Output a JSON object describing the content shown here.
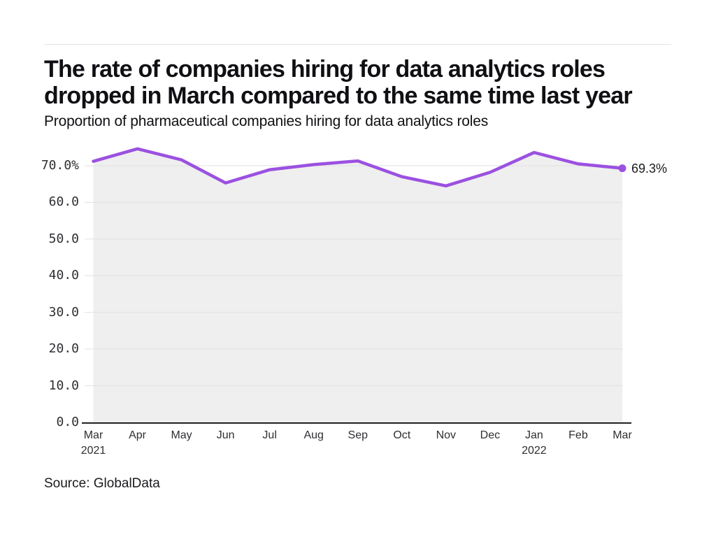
{
  "header": {
    "title": "The rate of companies hiring for data analytics roles\ndropped in March compared to the same time last year",
    "subtitle": "Proportion of pharmaceutical companies hiring for data analytics roles"
  },
  "chart_data": {
    "type": "line",
    "title": "The rate of companies hiring for data analytics roles dropped in March compared to the same time last year",
    "subtitle": "Proportion of pharmaceutical companies hiring for data analytics roles",
    "categories": [
      "Mar 2021",
      "Apr",
      "May",
      "Jun",
      "Jul",
      "Aug",
      "Sep",
      "Oct",
      "Nov",
      "Dec",
      "Jan 2022",
      "Feb",
      "Mar"
    ],
    "x_tick_labels": [
      {
        "month": "Mar",
        "year": "2021"
      },
      {
        "month": "Apr"
      },
      {
        "month": "May"
      },
      {
        "month": "Jun"
      },
      {
        "month": "Jul"
      },
      {
        "month": "Aug"
      },
      {
        "month": "Sep"
      },
      {
        "month": "Oct"
      },
      {
        "month": "Nov"
      },
      {
        "month": "Dec"
      },
      {
        "month": "Jan",
        "year": "2022"
      },
      {
        "month": "Feb"
      },
      {
        "month": "Mar"
      }
    ],
    "series": [
      {
        "name": "Proportion of pharmaceutical companies hiring for data analytics roles",
        "values": [
          71.2,
          74.6,
          71.6,
          65.3,
          68.9,
          70.3,
          71.3,
          67.0,
          64.5,
          68.2,
          73.6,
          70.5,
          69.3
        ]
      }
    ],
    "end_label": "69.3%",
    "yticks": [
      {
        "value": 70,
        "label": "70.0%"
      },
      {
        "value": 60,
        "label": "60.0"
      },
      {
        "value": 50,
        "label": "50.0"
      },
      {
        "value": 40,
        "label": "40.0"
      },
      {
        "value": 30,
        "label": "30.0"
      },
      {
        "value": 20,
        "label": "20.0"
      },
      {
        "value": 10,
        "label": "10.0"
      },
      {
        "value": 0,
        "label": "0.0"
      }
    ],
    "xlabel": "",
    "ylabel": "",
    "ylim": [
      0,
      75
    ],
    "grid": true,
    "legend": "none",
    "colors": {
      "line": "#9b51e0",
      "area": "#efefef",
      "grid": "#e0e0e0",
      "axis": "#222226",
      "tick_text": "#2f2f33"
    }
  },
  "footer": {
    "source": "Source: GlobalData"
  }
}
